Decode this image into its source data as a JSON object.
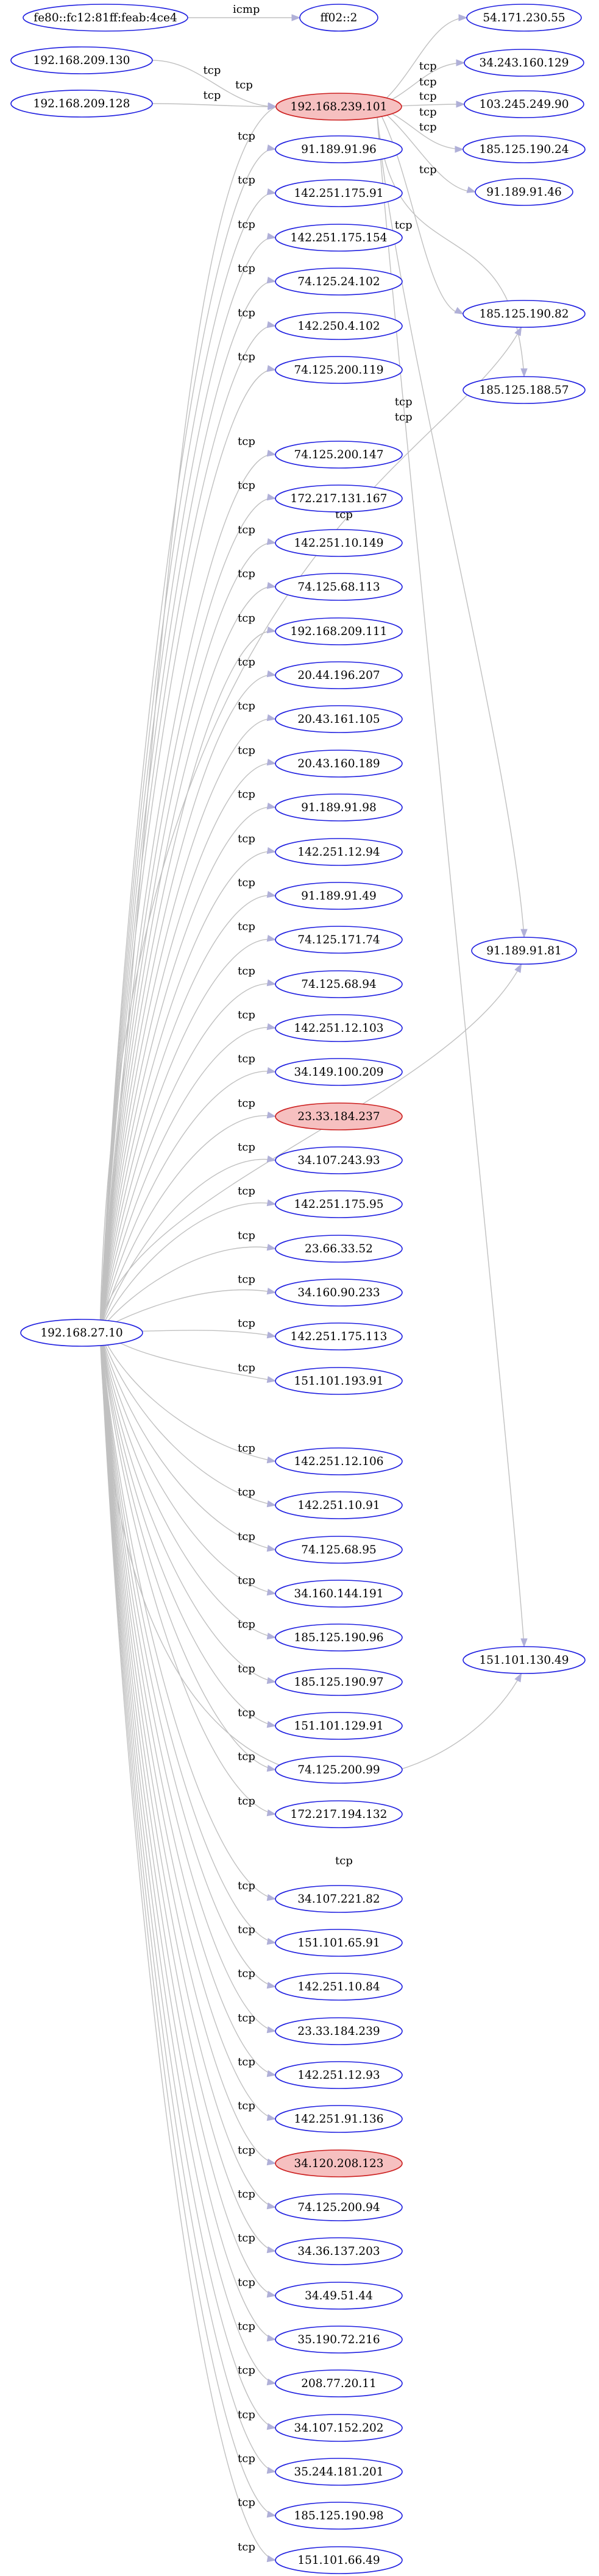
{
  "colors": {
    "node_stroke": "#2020e0",
    "node_fill": "#ffffff",
    "alert_fill": "#f6c0c0",
    "alert_stroke": "#cc2020",
    "edge": "#c0c0c0",
    "arrow": "#b0b0d8"
  },
  "nodes": [
    {
      "id": "n_fe80",
      "label": "fe80::fc12:81ff:feab:4ce4"
    },
    {
      "id": "n_ff02",
      "label": "ff02::2"
    },
    {
      "id": "n_209_130",
      "label": "192.168.209.130"
    },
    {
      "id": "n_209_128",
      "label": "192.168.209.128"
    },
    {
      "id": "n_239_101",
      "label": "192.168.239.101",
      "alert": true
    },
    {
      "id": "n_54_171",
      "label": "54.171.230.55"
    },
    {
      "id": "n_34_243",
      "label": "34.243.160.129"
    },
    {
      "id": "n_103_245",
      "label": "103.245.249.90"
    },
    {
      "id": "n_185_190_24",
      "label": "185.125.190.24"
    },
    {
      "id": "n_91_46",
      "label": "91.189.91.46"
    },
    {
      "id": "n_185_190_82",
      "label": "185.125.190.82"
    },
    {
      "id": "n_185_188_57",
      "label": "185.125.188.57"
    },
    {
      "id": "n_91_81",
      "label": "91.189.91.81"
    },
    {
      "id": "n_151_130_49",
      "label": "151.101.130.49"
    },
    {
      "id": "n_27_10",
      "label": "192.168.27.10"
    },
    {
      "id": "d01",
      "label": "91.189.91.96"
    },
    {
      "id": "d02",
      "label": "142.251.175.91"
    },
    {
      "id": "d03",
      "label": "142.251.175.154"
    },
    {
      "id": "d04",
      "label": "74.125.24.102"
    },
    {
      "id": "d05",
      "label": "142.250.4.102"
    },
    {
      "id": "d06",
      "label": "74.125.200.119"
    },
    {
      "id": "d07",
      "label": "74.125.200.147"
    },
    {
      "id": "d08",
      "label": "172.217.131.167"
    },
    {
      "id": "d09",
      "label": "142.251.10.149"
    },
    {
      "id": "d10",
      "label": "74.125.68.113"
    },
    {
      "id": "d11",
      "label": "192.168.209.111"
    },
    {
      "id": "d12",
      "label": "20.44.196.207"
    },
    {
      "id": "d13",
      "label": "20.43.161.105"
    },
    {
      "id": "d14",
      "label": "20.43.160.189"
    },
    {
      "id": "d15",
      "label": "91.189.91.98"
    },
    {
      "id": "d16",
      "label": "142.251.12.94"
    },
    {
      "id": "d17",
      "label": "91.189.91.49"
    },
    {
      "id": "d18",
      "label": "74.125.171.74"
    },
    {
      "id": "d19",
      "label": "74.125.68.94"
    },
    {
      "id": "d20",
      "label": "142.251.12.103"
    },
    {
      "id": "d21",
      "label": "34.149.100.209"
    },
    {
      "id": "d22",
      "label": "23.33.184.237",
      "alert": true
    },
    {
      "id": "d23",
      "label": "34.107.243.93"
    },
    {
      "id": "d24",
      "label": "142.251.175.95"
    },
    {
      "id": "d25",
      "label": "23.66.33.52"
    },
    {
      "id": "d26",
      "label": "34.160.90.233"
    },
    {
      "id": "d27",
      "label": "142.251.175.113"
    },
    {
      "id": "d28",
      "label": "151.101.193.91"
    },
    {
      "id": "d29",
      "label": "142.251.12.106"
    },
    {
      "id": "d30",
      "label": "142.251.10.91"
    },
    {
      "id": "d31",
      "label": "74.125.68.95"
    },
    {
      "id": "d32",
      "label": "34.160.144.191"
    },
    {
      "id": "d33",
      "label": "185.125.190.96"
    },
    {
      "id": "d34",
      "label": "185.125.190.97"
    },
    {
      "id": "d35",
      "label": "151.101.129.91"
    },
    {
      "id": "d36",
      "label": "74.125.200.99"
    },
    {
      "id": "d37",
      "label": "172.217.194.132"
    },
    {
      "id": "d38",
      "label": "34.107.221.82"
    },
    {
      "id": "d39",
      "label": "151.101.65.91"
    },
    {
      "id": "d40",
      "label": "142.251.10.84"
    },
    {
      "id": "d41",
      "label": "23.33.184.239"
    },
    {
      "id": "d42",
      "label": "142.251.12.93"
    },
    {
      "id": "d43",
      "label": "142.251.91.136"
    },
    {
      "id": "d44",
      "label": "34.120.208.123",
      "alert": true
    },
    {
      "id": "d45",
      "label": "74.125.200.94"
    },
    {
      "id": "d46",
      "label": "34.36.137.203"
    },
    {
      "id": "d47",
      "label": "34.49.51.44"
    },
    {
      "id": "d48",
      "label": "35.190.72.216"
    },
    {
      "id": "d49",
      "label": "208.77.20.11"
    },
    {
      "id": "d50",
      "label": "34.107.152.202"
    },
    {
      "id": "d51",
      "label": "35.244.181.201"
    },
    {
      "id": "d52",
      "label": "185.125.190.98"
    },
    {
      "id": "d53",
      "label": "151.101.66.49"
    }
  ],
  "edges": [
    {
      "from": "n_fe80",
      "to": "n_ff02",
      "label": "icmp"
    },
    {
      "from": "n_209_130",
      "to": "n_239_101",
      "label": "tcp"
    },
    {
      "from": "n_209_128",
      "to": "n_239_101",
      "label": "tcp"
    },
    {
      "from": "n_239_101",
      "to": "n_54_171",
      "label": "tcp"
    },
    {
      "from": "n_239_101",
      "to": "n_34_243",
      "label": "tcp"
    },
    {
      "from": "n_239_101",
      "to": "n_103_245",
      "label": "tcp"
    },
    {
      "from": "n_239_101",
      "to": "n_185_190_24",
      "label": "tcp"
    },
    {
      "from": "n_239_101",
      "to": "n_91_46",
      "label": "tcp"
    },
    {
      "from": "n_239_101",
      "to": "n_185_190_82",
      "label": "tcp"
    },
    {
      "from": "n_239_101",
      "to": "n_185_188_57",
      "label": "tcp"
    },
    {
      "from": "n_239_101",
      "to": "n_91_81",
      "label": "tcp"
    },
    {
      "from": "n_239_101",
      "to": "n_151_130_49",
      "label": "tcp"
    },
    {
      "from": "n_27_10",
      "to": "n_239_101",
      "label": "tcp"
    },
    {
      "from": "n_27_10",
      "to": "n_185_190_82",
      "label": "tcp"
    },
    {
      "from": "n_27_10",
      "to": "n_91_81",
      "label": "tcp"
    },
    {
      "from": "n_27_10",
      "to": "n_151_130_49",
      "label": "tcp"
    },
    {
      "from": "n_27_10",
      "to": "d01",
      "label": "tcp"
    },
    {
      "from": "n_27_10",
      "to": "d02",
      "label": "tcp"
    },
    {
      "from": "n_27_10",
      "to": "d03",
      "label": "tcp"
    },
    {
      "from": "n_27_10",
      "to": "d04",
      "label": "tcp"
    },
    {
      "from": "n_27_10",
      "to": "d05",
      "label": "tcp"
    },
    {
      "from": "n_27_10",
      "to": "d06",
      "label": "tcp"
    },
    {
      "from": "n_27_10",
      "to": "d07",
      "label": "tcp"
    },
    {
      "from": "n_27_10",
      "to": "d08",
      "label": "tcp"
    },
    {
      "from": "n_27_10",
      "to": "d09",
      "label": "tcp"
    },
    {
      "from": "n_27_10",
      "to": "d10",
      "label": "tcp"
    },
    {
      "from": "n_27_10",
      "to": "d11",
      "label": "tcp"
    },
    {
      "from": "n_27_10",
      "to": "d12",
      "label": "tcp"
    },
    {
      "from": "n_27_10",
      "to": "d13",
      "label": "tcp"
    },
    {
      "from": "n_27_10",
      "to": "d14",
      "label": "tcp"
    },
    {
      "from": "n_27_10",
      "to": "d15",
      "label": "tcp"
    },
    {
      "from": "n_27_10",
      "to": "d16",
      "label": "tcp"
    },
    {
      "from": "n_27_10",
      "to": "d17",
      "label": "tcp"
    },
    {
      "from": "n_27_10",
      "to": "d18",
      "label": "tcp"
    },
    {
      "from": "n_27_10",
      "to": "d19",
      "label": "tcp"
    },
    {
      "from": "n_27_10",
      "to": "d20",
      "label": "tcp"
    },
    {
      "from": "n_27_10",
      "to": "d21",
      "label": "tcp"
    },
    {
      "from": "n_27_10",
      "to": "d22",
      "label": "tcp"
    },
    {
      "from": "n_27_10",
      "to": "d23",
      "label": "tcp"
    },
    {
      "from": "n_27_10",
      "to": "d24",
      "label": "tcp"
    },
    {
      "from": "n_27_10",
      "to": "d25",
      "label": "tcp"
    },
    {
      "from": "n_27_10",
      "to": "d26",
      "label": "tcp"
    },
    {
      "from": "n_27_10",
      "to": "d27",
      "label": "tcp"
    },
    {
      "from": "n_27_10",
      "to": "d28",
      "label": "tcp"
    },
    {
      "from": "n_27_10",
      "to": "d29",
      "label": "tcp"
    },
    {
      "from": "n_27_10",
      "to": "d30",
      "label": "tcp"
    },
    {
      "from": "n_27_10",
      "to": "d31",
      "label": "tcp"
    },
    {
      "from": "n_27_10",
      "to": "d32",
      "label": "tcp"
    },
    {
      "from": "n_27_10",
      "to": "d33",
      "label": "tcp"
    },
    {
      "from": "n_27_10",
      "to": "d34",
      "label": "tcp"
    },
    {
      "from": "n_27_10",
      "to": "d35",
      "label": "tcp"
    },
    {
      "from": "n_27_10",
      "to": "d36",
      "label": "tcp"
    },
    {
      "from": "n_27_10",
      "to": "d37",
      "label": "tcp"
    },
    {
      "from": "n_27_10",
      "to": "d38",
      "label": "tcp"
    },
    {
      "from": "n_27_10",
      "to": "d39",
      "label": "tcp"
    },
    {
      "from": "n_27_10",
      "to": "d40",
      "label": "tcp"
    },
    {
      "from": "n_27_10",
      "to": "d41",
      "label": "tcp"
    },
    {
      "from": "n_27_10",
      "to": "d42",
      "label": "tcp"
    },
    {
      "from": "n_27_10",
      "to": "d43",
      "label": "tcp"
    },
    {
      "from": "n_27_10",
      "to": "d44",
      "label": "tcp"
    },
    {
      "from": "n_27_10",
      "to": "d45",
      "label": "tcp"
    },
    {
      "from": "n_27_10",
      "to": "d46",
      "label": "tcp"
    },
    {
      "from": "n_27_10",
      "to": "d47",
      "label": "tcp"
    },
    {
      "from": "n_27_10",
      "to": "d48",
      "label": "tcp"
    },
    {
      "from": "n_27_10",
      "to": "d49",
      "label": "tcp"
    },
    {
      "from": "n_27_10",
      "to": "d50",
      "label": "tcp"
    },
    {
      "from": "n_27_10",
      "to": "d51",
      "label": "tcp"
    },
    {
      "from": "n_27_10",
      "to": "d52",
      "label": "tcp"
    },
    {
      "from": "n_27_10",
      "to": "d53",
      "label": "tcp"
    }
  ]
}
